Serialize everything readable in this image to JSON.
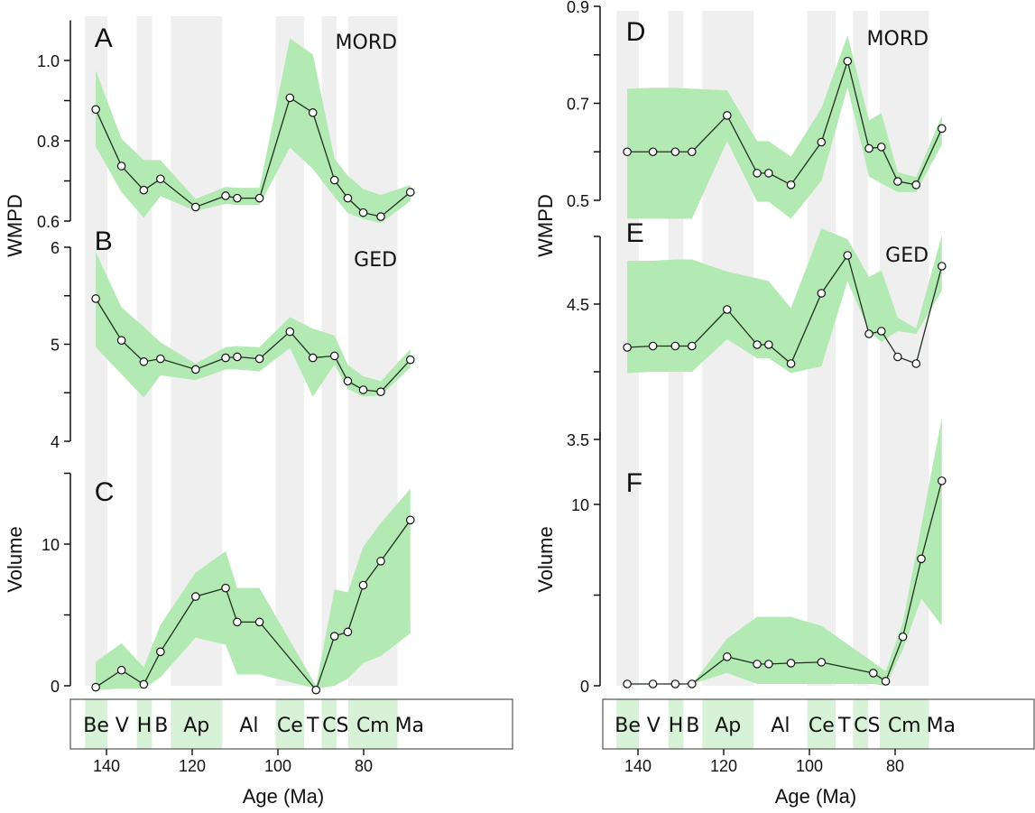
{
  "colors": {
    "band_fill": "#b3eab3",
    "stage_shade_plot": "#efefef",
    "stage_shade_bar": "#d7f2d7",
    "line": "#1f2f1f",
    "marker_fill": "#ffffff",
    "marker_stroke": "#111111",
    "axis": "#111111",
    "box": "#555555"
  },
  "x_axis": {
    "label": "Age (Ma)",
    "ticks": [
      140,
      120,
      100,
      80
    ],
    "tick_labels": [
      "140",
      "120",
      "100",
      "80"
    ],
    "range": [
      149,
      66
    ]
  },
  "stages": [
    {
      "label": "Be",
      "start": 145,
      "end": 139.8,
      "shaded": true
    },
    {
      "label": "V",
      "start": 139.8,
      "end": 132.9,
      "shaded": false
    },
    {
      "label": "H",
      "start": 132.9,
      "end": 129.4,
      "shaded": true
    },
    {
      "label": "B",
      "start": 129.4,
      "end": 125,
      "shaded": false
    },
    {
      "label": "Ap",
      "start": 125,
      "end": 113,
      "shaded": true
    },
    {
      "label": "Al",
      "start": 113,
      "end": 100.5,
      "shaded": false
    },
    {
      "label": "Ce",
      "start": 100.5,
      "end": 93.9,
      "shaded": true
    },
    {
      "label": "T",
      "start": 93.9,
      "end": 89.8,
      "shaded": false
    },
    {
      "label": "C",
      "start": 89.8,
      "end": 86.3,
      "shaded": true
    },
    {
      "label": "S",
      "start": 86.3,
      "end": 83.6,
      "shaded": false
    },
    {
      "label": "Cm",
      "start": 83.6,
      "end": 72.1,
      "shaded": true
    },
    {
      "label": "Ma",
      "start": 72.1,
      "end": 66,
      "shaded": false
    }
  ],
  "chart_data": [
    {
      "type": "line",
      "panel": "A",
      "metric_label": "MORD",
      "ylabel": "WMPD",
      "ylim": [
        0.6,
        1.1
      ],
      "yticks": [
        0.6,
        0.7,
        0.8,
        0.9,
        1.0
      ],
      "ytick_labels": [
        "0.6",
        "",
        "0.8",
        "",
        "1.0"
      ],
      "x": [
        142.5,
        136.5,
        131.3,
        127.4,
        119.2,
        112.2,
        109.5,
        104.3,
        97.2,
        91.85,
        86.8,
        83.7,
        80.1,
        76.0,
        69.1
      ],
      "values": [
        0.878,
        0.737,
        0.677,
        0.705,
        0.635,
        0.663,
        0.657,
        0.657,
        0.907,
        0.87,
        0.702,
        0.657,
        0.621,
        0.611,
        0.672
      ],
      "upper": [
        0.975,
        0.805,
        0.752,
        0.752,
        0.655,
        0.685,
        0.683,
        0.683,
        1.055,
        1.015,
        0.755,
        0.713,
        0.68,
        0.665,
        0.69
      ],
      "lower": [
        0.785,
        0.672,
        0.608,
        0.662,
        0.625,
        0.643,
        0.64,
        0.64,
        0.783,
        0.73,
        0.66,
        0.62,
        0.605,
        0.595,
        0.65
      ],
      "grid": false
    },
    {
      "type": "line",
      "panel": "B",
      "metric_label": "GED",
      "ylabel": "WMPD",
      "ylim": [
        4,
        6
      ],
      "yticks": [
        4,
        4.5,
        5,
        5.5,
        6
      ],
      "ytick_labels": [
        "4",
        "",
        "5",
        "",
        "6"
      ],
      "x": [
        142.5,
        136.5,
        131.3,
        127.4,
        119.2,
        112.2,
        109.5,
        104.3,
        97.2,
        91.85,
        86.8,
        83.7,
        80.1,
        76.0,
        69.1
      ],
      "values": [
        5.47,
        5.04,
        4.82,
        4.85,
        4.74,
        4.86,
        4.87,
        4.85,
        5.13,
        4.86,
        4.88,
        4.62,
        4.53,
        4.51,
        4.84
      ],
      "upper": [
        5.95,
        5.38,
        5.18,
        5.02,
        4.8,
        4.97,
        4.98,
        4.97,
        5.28,
        5.16,
        5.09,
        4.79,
        4.67,
        4.62,
        4.95
      ],
      "lower": [
        4.97,
        4.69,
        4.45,
        4.68,
        4.63,
        4.74,
        4.74,
        4.72,
        4.96,
        4.46,
        4.79,
        4.54,
        4.46,
        4.47,
        4.76
      ],
      "grid": false
    },
    {
      "type": "line",
      "panel": "C",
      "metric_label": "",
      "ylabel": "Volume",
      "xlabel": "Age (Ma)",
      "ylim": [
        0,
        14
      ],
      "yticks": [
        0,
        5,
        10
      ],
      "ytick_labels": [
        "0",
        "",
        "10"
      ],
      "minor_yticks": [
        15
      ],
      "x": [
        142.5,
        136.5,
        131.3,
        127.4,
        119.2,
        112.2,
        109.5,
        104.3,
        91.1,
        86.8,
        83.7,
        80.1,
        76.0,
        69.1
      ],
      "values": [
        -0.1,
        1.1,
        0.1,
        2.4,
        6.3,
        6.9,
        4.5,
        4.5,
        -0.3,
        3.5,
        3.8,
        7.1,
        8.8,
        11.7
      ],
      "upper": [
        1.7,
        3.0,
        1.3,
        4.3,
        8.0,
        9.5,
        6.9,
        6.9,
        0.0,
        6.8,
        6.6,
        9.8,
        11.5,
        13.9
      ],
      "lower": [
        -0.3,
        -0.2,
        -0.2,
        0.6,
        3.4,
        2.9,
        0.8,
        0.8,
        -0.2,
        0.0,
        0.5,
        1.6,
        2.1,
        3.7
      ],
      "grid": false
    },
    {
      "type": "line",
      "panel": "D",
      "metric_label": "MORD",
      "ylabel": "WMPD",
      "ylim": [
        0.5,
        0.9
      ],
      "yticks": [
        0.5,
        0.6,
        0.7,
        0.8,
        0.9
      ],
      "ytick_labels": [
        "0.5",
        "",
        "0.7",
        "",
        "0.9"
      ],
      "x": [
        142.5,
        136.5,
        131.3,
        127.4,
        119.2,
        112.2,
        109.5,
        104.3,
        97.2,
        91.1,
        86.1,
        83.2,
        79.4,
        75.1,
        69.1
      ],
      "values": [
        0.6,
        0.6,
        0.6,
        0.6,
        0.675,
        0.556,
        0.556,
        0.532,
        0.62,
        0.787,
        0.607,
        0.61,
        0.539,
        0.532,
        0.648
      ],
      "upper": [
        0.73,
        0.732,
        0.732,
        0.73,
        0.727,
        0.622,
        0.622,
        0.59,
        0.69,
        0.84,
        0.665,
        0.68,
        0.558,
        0.548,
        0.675
      ],
      "lower": [
        0.462,
        0.462,
        0.462,
        0.462,
        0.622,
        0.497,
        0.497,
        0.462,
        0.54,
        0.733,
        0.549,
        0.535,
        0.517,
        0.517,
        0.615
      ],
      "grid": false
    },
    {
      "type": "line",
      "panel": "E",
      "metric_label": "GED",
      "ylabel": "WMPD",
      "ylim": [
        3.5,
        5.0
      ],
      "yticks": [
        3.5,
        4.0,
        4.5,
        5.0
      ],
      "ytick_labels": [
        "3.5",
        "",
        "4.5",
        ""
      ],
      "x": [
        142.5,
        136.5,
        131.3,
        127.4,
        119.2,
        112.2,
        109.5,
        104.3,
        97.2,
        91.1,
        86.1,
        83.2,
        79.4,
        75.1,
        69.1
      ],
      "values": [
        4.18,
        4.19,
        4.19,
        4.19,
        4.46,
        4.2,
        4.2,
        4.06,
        4.58,
        4.86,
        4.28,
        4.3,
        4.11,
        4.06,
        4.78
      ],
      "upper": [
        4.82,
        4.82,
        4.83,
        4.83,
        4.74,
        4.69,
        4.67,
        4.47,
        5.06,
        4.98,
        4.7,
        4.75,
        4.4,
        4.32,
        5.01
      ],
      "lower": [
        3.99,
        4.0,
        4.0,
        4.0,
        4.24,
        4.1,
        4.1,
        3.99,
        4.04,
        4.67,
        4.3,
        4.22,
        4.3,
        4.28,
        4.6
      ],
      "grid": false
    },
    {
      "type": "line",
      "panel": "F",
      "metric_label": "",
      "ylabel": "Volume",
      "xlabel": "Age (Ma)",
      "ylim": [
        0,
        13
      ],
      "yticks": [
        0,
        5,
        10
      ],
      "ytick_labels": [
        "0",
        "",
        "10"
      ],
      "x": [
        142.5,
        136.5,
        131.3,
        127.4,
        119.2,
        112.2,
        109.5,
        104.3,
        97.2,
        85.1,
        82.2,
        78.2,
        73.9,
        69.1
      ],
      "values": [
        0.1,
        0.1,
        0.1,
        0.1,
        1.6,
        1.2,
        1.2,
        1.25,
        1.3,
        0.7,
        0.25,
        2.7,
        7.0,
        11.3
      ],
      "upper": [
        0.1,
        0.1,
        0.1,
        0.1,
        2.6,
        3.8,
        3.8,
        3.8,
        3.3,
        1.3,
        0.8,
        3.5,
        8.8,
        14.8
      ],
      "lower": [
        0.1,
        0.1,
        0.1,
        0.1,
        0.7,
        0.1,
        0.1,
        0.1,
        0.1,
        0.1,
        0.0,
        2.0,
        4.8,
        3.3
      ],
      "grid": false
    }
  ]
}
